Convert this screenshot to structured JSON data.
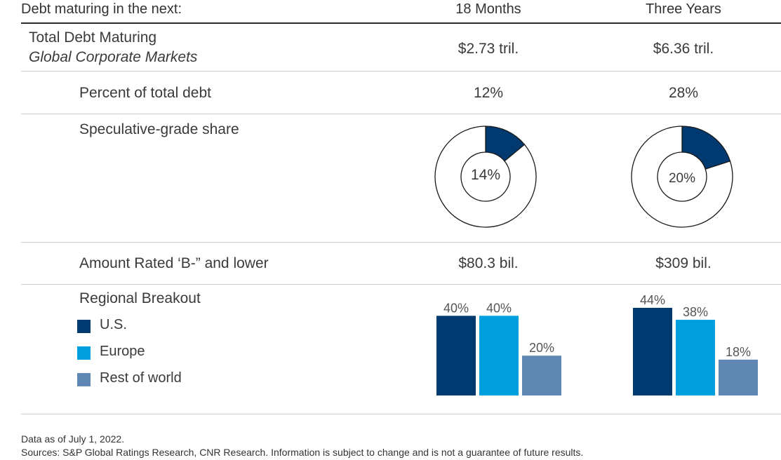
{
  "header": {
    "row_label": "Debt maturing in the next:",
    "col1": "18 Months",
    "col2": "Three Years"
  },
  "rows": {
    "total": {
      "label": "Total Debt Maturing",
      "sublabel": "Global Corporate Markets",
      "col1": "$2.73 tril.",
      "col2": "$6.36 tril."
    },
    "percent": {
      "label": "Percent of total debt",
      "col1": "12%",
      "col2": "28%"
    },
    "spec": {
      "label": "Speculative-grade share",
      "col1": "14%",
      "col2": "20%"
    },
    "rated": {
      "label": "Amount Rated ‘B-” and lower",
      "col1": "$80.3 bil.",
      "col2": "$309 bil."
    },
    "regional": {
      "label": "Regional Breakout"
    }
  },
  "legend": [
    {
      "label": "U.S.",
      "color": "#003a70"
    },
    {
      "label": "Europe",
      "color": "#00a0df"
    },
    {
      "label": "Rest of world",
      "color": "#5f87b3"
    }
  ],
  "footer": {
    "line1": "Data as of July 1, 2022.",
    "line2": "Sources: S&P Global Ratings Research, CNR Research. Information is subject to change and is not a guarantee of future results."
  },
  "chart_data": [
    {
      "type": "pie",
      "variant": "donut",
      "categories": [
        "Speculative-grade",
        "Other"
      ],
      "values": [
        14,
        86
      ],
      "center_label": "14%",
      "colors": [
        "#003a70",
        "#ffffff"
      ]
    },
    {
      "type": "pie",
      "variant": "donut",
      "categories": [
        "Speculative-grade",
        "Other"
      ],
      "values": [
        20,
        80
      ],
      "center_label": "20%",
      "colors": [
        "#003a70",
        "#ffffff"
      ]
    },
    {
      "type": "bar",
      "categories": [
        "U.S.",
        "Europe",
        "Rest of world"
      ],
      "values": [
        40,
        40,
        20
      ],
      "labels": [
        "40%",
        "40%",
        "20%"
      ],
      "colors": [
        "#003a70",
        "#00a0df",
        "#5f87b3"
      ],
      "ylim": [
        0,
        44
      ]
    },
    {
      "type": "bar",
      "categories": [
        "U.S.",
        "Europe",
        "Rest of world"
      ],
      "values": [
        44,
        38,
        18
      ],
      "labels": [
        "44%",
        "38%",
        "18%"
      ],
      "colors": [
        "#003a70",
        "#00a0df",
        "#5f87b3"
      ],
      "ylim": [
        0,
        44
      ]
    }
  ]
}
